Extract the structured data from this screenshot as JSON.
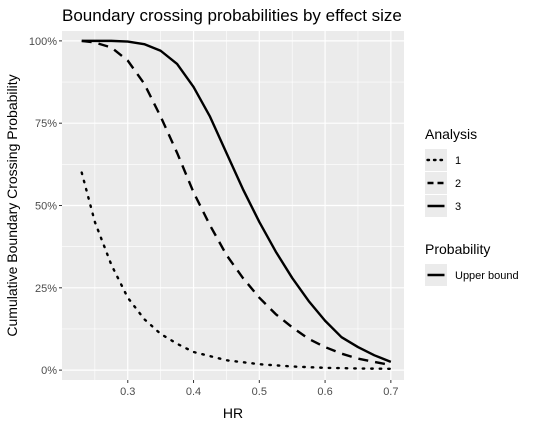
{
  "chart_data": {
    "type": "line",
    "title": "Boundary crossing probabilities by effect size",
    "xlabel": "HR",
    "ylabel": "Cumulative Boundary Crossing Probability",
    "xlim": [
      0.2,
      0.72
    ],
    "ylim": [
      -0.03,
      1.03
    ],
    "x_ticks": [
      0.3,
      0.4,
      0.5,
      0.6,
      0.7
    ],
    "x_tick_labels": [
      "0.3",
      "0.4",
      "0.5",
      "0.6",
      "0.7"
    ],
    "y_ticks": [
      0,
      0.25,
      0.5,
      0.75,
      1
    ],
    "y_tick_labels": [
      "0%",
      "25%",
      "50%",
      "75%",
      "100%"
    ],
    "grid": true,
    "panel_background": "#ebebeb",
    "line_color": "#000000",
    "legend_placement": "right",
    "legends": [
      {
        "title": "Analysis",
        "entries": [
          {
            "label": "1",
            "linetype": "dotted"
          },
          {
            "label": "2",
            "linetype": "dashed"
          },
          {
            "label": "3",
            "linetype": "solid"
          }
        ]
      },
      {
        "title": "Probability",
        "entries": [
          {
            "label": "Upper bound",
            "linetype": "solid"
          }
        ]
      }
    ],
    "series": [
      {
        "name": "1",
        "linetype": "dotted",
        "x": [
          0.23,
          0.25,
          0.275,
          0.3,
          0.325,
          0.35,
          0.375,
          0.4,
          0.45,
          0.5,
          0.55,
          0.6,
          0.65,
          0.7
        ],
        "y": [
          0.6,
          0.45,
          0.32,
          0.22,
          0.155,
          0.11,
          0.08,
          0.055,
          0.03,
          0.018,
          0.011,
          0.007,
          0.005,
          0.004
        ]
      },
      {
        "name": "2",
        "linetype": "dashed",
        "x": [
          0.23,
          0.25,
          0.275,
          0.3,
          0.325,
          0.35,
          0.375,
          0.4,
          0.425,
          0.45,
          0.475,
          0.5,
          0.525,
          0.55,
          0.575,
          0.6,
          0.625,
          0.65,
          0.675,
          0.7
        ],
        "y": [
          1.0,
          0.995,
          0.98,
          0.94,
          0.87,
          0.77,
          0.66,
          0.54,
          0.44,
          0.35,
          0.28,
          0.22,
          0.17,
          0.13,
          0.095,
          0.07,
          0.05,
          0.035,
          0.025,
          0.015
        ]
      },
      {
        "name": "3",
        "linetype": "solid",
        "x": [
          0.23,
          0.25,
          0.275,
          0.3,
          0.325,
          0.35,
          0.375,
          0.4,
          0.425,
          0.45,
          0.475,
          0.5,
          0.525,
          0.55,
          0.575,
          0.6,
          0.625,
          0.65,
          0.675,
          0.7
        ],
        "y": [
          1.0,
          1.0,
          1.0,
          0.998,
          0.99,
          0.97,
          0.93,
          0.86,
          0.77,
          0.66,
          0.55,
          0.45,
          0.36,
          0.28,
          0.21,
          0.15,
          0.1,
          0.07,
          0.045,
          0.025
        ]
      }
    ]
  }
}
